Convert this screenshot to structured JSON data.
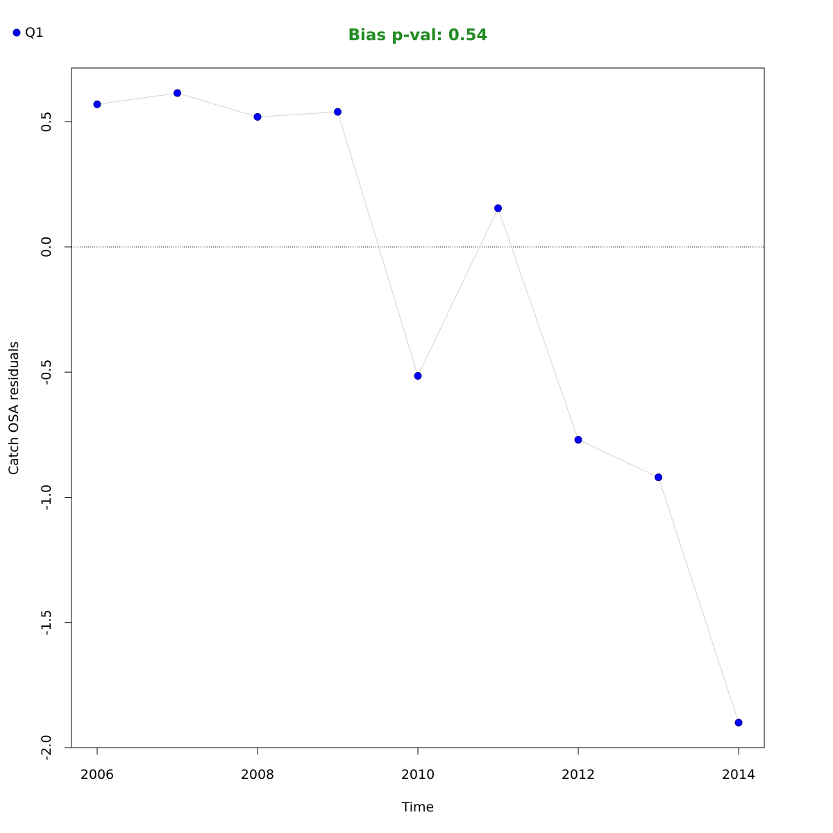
{
  "chart_data": {
    "type": "line",
    "title": "Bias p-val: 0.54",
    "title_color": "#228B22",
    "xlabel": "Time",
    "ylabel": "Catch OSA residuals",
    "xlim": [
      2005.68,
      2014.32
    ],
    "ylim": [
      -2.0,
      0.715
    ],
    "x_ticks": [
      "2006",
      "2008",
      "2010",
      "2012",
      "2014"
    ],
    "y_ticks": [
      "-2.0",
      "-1.5",
      "-1.0",
      "-0.5",
      "0.0",
      "0.5"
    ],
    "reference_line": 0,
    "legend": {
      "placement": "top-left",
      "entries": [
        "Q1"
      ]
    },
    "series": [
      {
        "name": "Q1",
        "color": "#0000FF",
        "line_color": "#D3D3D3",
        "x": [
          2006,
          2007,
          2008,
          2009,
          2010,
          2011,
          2012,
          2013,
          2014
        ],
        "values": [
          0.57,
          0.615,
          0.52,
          0.54,
          -0.515,
          0.155,
          -0.77,
          -0.92,
          -1.9
        ]
      }
    ]
  }
}
